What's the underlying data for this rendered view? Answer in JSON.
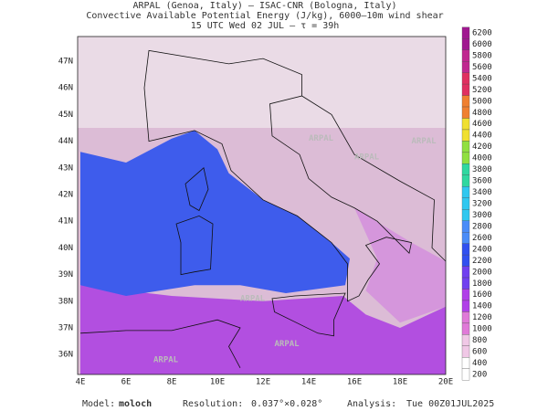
{
  "header": {
    "line1": "ARPAL (Genoa, Italy)  –  ISAC-CNR (Bologna, Italy)",
    "line2": "Convective Available Potential Energy (J/kg), 6000–10m wind shear",
    "line3": "15 UTC Wed 02 JUL  –  τ = 39h"
  },
  "map": {
    "lat_labels": [
      "47N",
      "46N",
      "45N",
      "44N",
      "43N",
      "42N",
      "41N",
      "40N",
      "39N",
      "38N",
      "37N",
      "36N"
    ],
    "lon_labels": [
      "4E",
      "6E",
      "8E",
      "10E",
      "12E",
      "14E",
      "16E",
      "18E",
      "20E"
    ],
    "watermarks": [
      "ARPAL",
      "ARPAL",
      "ARPAL",
      "ARPAL",
      "ARPAL",
      "ARPAL"
    ]
  },
  "colorbar": {
    "labels": [
      6200,
      6000,
      5800,
      5600,
      5400,
      5200,
      5000,
      4800,
      4600,
      4400,
      4200,
      4000,
      3800,
      3600,
      3400,
      3200,
      3000,
      2800,
      2600,
      2400,
      2200,
      2000,
      1800,
      1600,
      1400,
      1200,
      1000,
      800,
      600,
      400,
      200
    ]
  },
  "footer": {
    "model_label": "Model:",
    "model": "moloch",
    "resolution_label": "Resolution:",
    "resolution": "0.037°×0.028°",
    "analysis_label": "Analysis:",
    "analysis": "Tue 00Z01JUL2025"
  }
}
